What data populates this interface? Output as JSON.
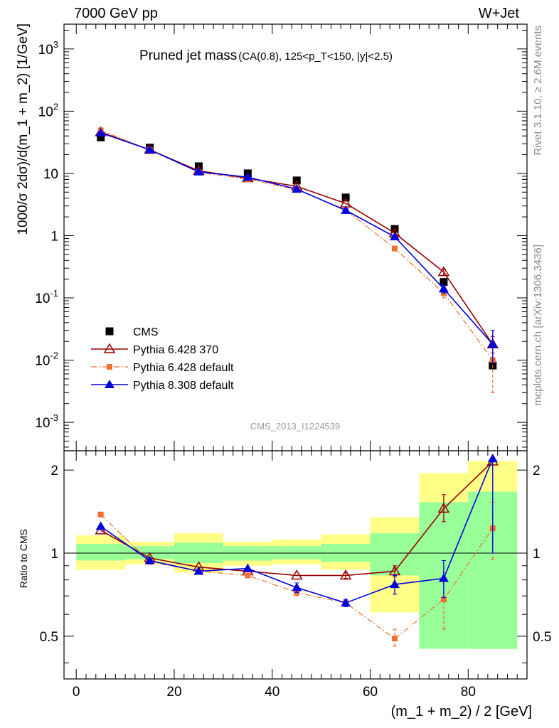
{
  "header": {
    "left": "7000 GeV pp",
    "right": "W+Jet"
  },
  "side": {
    "rivet": "Rivet 3.1.10, ≥ 2.6M events",
    "mcplots": "mcplots.cern.ch [arXiv:1306.3436]"
  },
  "colors": {
    "cms": "#000000",
    "p6_370": "#990000",
    "p6_default": "#f07030",
    "p8_default": "#0000dd",
    "band_inner": "#99ff99",
    "band_outer": "#ffff88"
  },
  "chart_data": [
    {
      "type": "scatter",
      "panel": "main",
      "title": "Pruned jet mass",
      "subtitle": "(CA(0.8), 125<p_T<150, |y|<2.5)",
      "watermark": "CMS_2013_I1224539",
      "ylabel": "1000/σ 2dσ)/d(m_1 + m_2) [1/GeV]",
      "yscale": "log",
      "ylim": [
        0.00035,
        2500
      ],
      "xlim": [
        -2.5,
        92
      ],
      "ytick_labels": [
        "10^{-3}",
        "10^{-2}",
        "10^{-1}",
        "1",
        "10",
        "10^{2}",
        "10^{3}"
      ],
      "legend": {
        "placement": "bottom-left",
        "entries": [
          "CMS",
          "Pythia 6.428 370",
          "Pythia 6.428 default",
          "Pythia 8.308 default"
        ]
      },
      "x": [
        5,
        15,
        25,
        35,
        45,
        55,
        65,
        75,
        85
      ],
      "series": [
        {
          "name": "CMS",
          "style": "square",
          "values": [
            38,
            26,
            13,
            10,
            7.7,
            4.1,
            1.28,
            0.18,
            0.0082
          ],
          "err_low": [
            0,
            0,
            0,
            0,
            0,
            0,
            0,
            0,
            0.001
          ],
          "err_high": [
            0,
            0,
            0,
            0,
            0,
            0,
            0,
            0,
            0.001
          ]
        },
        {
          "name": "Pythia 6.428 370",
          "style": "open-triangle",
          "values": [
            46,
            24,
            11,
            8.4,
            6.2,
            3.3,
            1.1,
            0.26,
            0.018
          ],
          "err_low": [
            0,
            0,
            0,
            0,
            0,
            0,
            0,
            0.03,
            0.005
          ],
          "err_high": [
            0,
            0,
            0,
            0,
            0,
            0,
            0,
            0.03,
            0.006
          ]
        },
        {
          "name": "Pythia 6.428 default",
          "style": "small-square-dashdot",
          "values": [
            49,
            24,
            10.4,
            8.1,
            5.5,
            2.6,
            0.62,
            0.12,
            0.01
          ],
          "err_low": [
            0,
            0,
            0,
            0,
            0,
            0,
            0.03,
            0.02,
            0.007
          ],
          "err_high": [
            0,
            0,
            0,
            0,
            0,
            0,
            0.03,
            0.02,
            0.008
          ]
        },
        {
          "name": "Pythia 8.308 default",
          "style": "filled-triangle",
          "values": [
            45,
            24,
            10.6,
            8.7,
            5.6,
            2.55,
            0.96,
            0.14,
            0.018
          ],
          "err_low": [
            0,
            0,
            0,
            0,
            0,
            0,
            0,
            0.02,
            0.009
          ],
          "err_high": [
            0,
            0,
            0,
            0,
            0,
            0,
            0,
            0.02,
            0.012
          ]
        }
      ]
    },
    {
      "type": "scatter",
      "panel": "ratio",
      "ylabel": "Ratio to CMS",
      "xlabel": "(m_1 + m_2) / 2 [GeV]",
      "yscale": "log",
      "ylim": [
        0.35,
        2.35
      ],
      "xlim": [
        -2.5,
        92
      ],
      "yticks": [
        0.5,
        1,
        2
      ],
      "ytick_labels": [
        "0.5",
        "1",
        "2"
      ],
      "xticks": [
        0,
        20,
        40,
        60,
        80
      ],
      "xtick_labels": [
        "0",
        "20",
        "40",
        "60",
        "80"
      ],
      "bins": [
        [
          0,
          10
        ],
        [
          10,
          20
        ],
        [
          20,
          30
        ],
        [
          30,
          40
        ],
        [
          40,
          50
        ],
        [
          50,
          60
        ],
        [
          60,
          70
        ],
        [
          70,
          80
        ],
        [
          80,
          90
        ]
      ],
      "band_inner": [
        [
          0.94,
          1.08
        ],
        [
          0.95,
          1.06
        ],
        [
          0.92,
          1.09
        ],
        [
          0.94,
          1.06
        ],
        [
          0.95,
          1.06
        ],
        [
          0.93,
          1.08
        ],
        [
          0.83,
          1.18
        ],
        [
          0.45,
          1.53
        ],
        [
          0.45,
          1.67
        ]
      ],
      "band_outer": [
        [
          0.87,
          1.16
        ],
        [
          0.91,
          1.1
        ],
        [
          0.85,
          1.18
        ],
        [
          0.9,
          1.1
        ],
        [
          0.91,
          1.12
        ],
        [
          0.87,
          1.17
        ],
        [
          0.61,
          1.35
        ],
        [
          0.53,
          1.95
        ],
        [
          0.45,
          2.16
        ]
      ],
      "x": [
        5,
        15,
        25,
        35,
        45,
        55,
        65,
        75,
        85
      ],
      "series": [
        {
          "name": "Pythia 6.428 370",
          "style": "open-triangle",
          "values": [
            1.21,
            0.96,
            0.89,
            0.86,
            0.83,
            0.83,
            0.86,
            1.45,
            2.15
          ],
          "err_low": [
            0,
            0,
            0,
            0,
            0,
            0.02,
            0.04,
            0.15,
            0
          ],
          "err_high": [
            0,
            0,
            0,
            0,
            0,
            0.02,
            0.04,
            0.18,
            0
          ]
        },
        {
          "name": "Pythia 6.428 default",
          "style": "small-square-dashdot",
          "values": [
            1.38,
            0.93,
            0.86,
            0.83,
            0.72,
            0.66,
            0.49,
            0.68,
            1.23
          ],
          "err_low": [
            0,
            0,
            0,
            0,
            0.02,
            0.02,
            0.03,
            0.15,
            0.28
          ],
          "err_high": [
            0,
            0,
            0,
            0,
            0.02,
            0.02,
            0.04,
            0.17,
            0.3
          ]
        },
        {
          "name": "Pythia 8.308 default",
          "style": "filled-triangle",
          "values": [
            1.25,
            0.94,
            0.86,
            0.88,
            0.75,
            0.66,
            0.77,
            0.81,
            2.2
          ],
          "err_low": [
            0,
            0,
            0,
            0,
            0.03,
            0.02,
            0.06,
            0.12,
            1.2
          ],
          "err_high": [
            0,
            0,
            0,
            0,
            0.03,
            0.02,
            0.06,
            0.13,
            0
          ]
        }
      ]
    }
  ]
}
